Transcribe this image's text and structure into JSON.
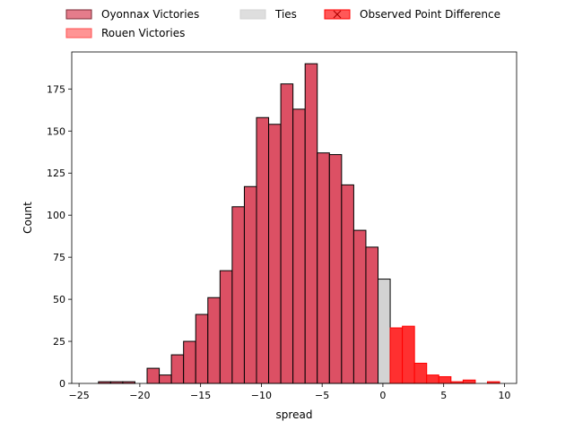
{
  "chart_data": {
    "type": "bar",
    "xlabel": "spread",
    "ylabel": "Count",
    "xlim": [
      -25.6,
      11.0
    ],
    "ylim": [
      0,
      197
    ],
    "x_ticks": [
      -25,
      -20,
      -15,
      -10,
      -5,
      0,
      5,
      10
    ],
    "y_ticks": [
      0,
      25,
      50,
      75,
      100,
      125,
      150,
      175
    ],
    "legend_position": "top",
    "legend": [
      {
        "label": "Oyonnax Victories",
        "color": "#dc5064",
        "edge": "#7a2a35"
      },
      {
        "label": "Ties",
        "color": "#d3d3d3",
        "edge": "#d3d3d3"
      },
      {
        "label": "Observed Point Difference",
        "color": "#ff2020",
        "edge": "#ff0000",
        "marker": "x"
      },
      {
        "label": "Rouen Victories",
        "color": "#ff7070",
        "edge": "#ff5050"
      }
    ],
    "series": [
      {
        "name": "Oyonnax Victories",
        "color": "#dc5064",
        "edge": "#000000",
        "bins": [
          {
            "x0": -23.4,
            "x1": -22.4,
            "count": 1
          },
          {
            "x0": -22.4,
            "x1": -21.4,
            "count": 1
          },
          {
            "x0": -21.4,
            "x1": -20.4,
            "count": 1
          },
          {
            "x0": -19.4,
            "x1": -18.4,
            "count": 9
          },
          {
            "x0": -18.4,
            "x1": -17.4,
            "count": 5
          },
          {
            "x0": -17.4,
            "x1": -16.4,
            "count": 17
          },
          {
            "x0": -16.4,
            "x1": -15.4,
            "count": 25
          },
          {
            "x0": -15.4,
            "x1": -14.4,
            "count": 41
          },
          {
            "x0": -14.4,
            "x1": -13.4,
            "count": 51
          },
          {
            "x0": -13.4,
            "x1": -12.4,
            "count": 67
          },
          {
            "x0": -12.4,
            "x1": -11.4,
            "count": 105
          },
          {
            "x0": -11.4,
            "x1": -10.4,
            "count": 117
          },
          {
            "x0": -10.4,
            "x1": -9.4,
            "count": 158
          },
          {
            "x0": -9.4,
            "x1": -8.4,
            "count": 154
          },
          {
            "x0": -8.4,
            "x1": -7.4,
            "count": 178
          },
          {
            "x0": -7.4,
            "x1": -6.4,
            "count": 163
          },
          {
            "x0": -6.4,
            "x1": -5.4,
            "count": 190
          },
          {
            "x0": -5.4,
            "x1": -4.4,
            "count": 137
          },
          {
            "x0": -4.4,
            "x1": -3.4,
            "count": 136
          },
          {
            "x0": -3.4,
            "x1": -2.4,
            "count": 118
          },
          {
            "x0": -2.4,
            "x1": -1.4,
            "count": 91
          },
          {
            "x0": -1.4,
            "x1": -0.4,
            "count": 81
          }
        ]
      },
      {
        "name": "Ties",
        "color": "#d3d3d3",
        "edge": "#000000",
        "bins": [
          {
            "x0": -0.4,
            "x1": 0.6,
            "count": 62
          }
        ]
      },
      {
        "name": "Rouen Victories",
        "color": "#ff3030",
        "edge": "#ff0000",
        "bins": [
          {
            "x0": 0.6,
            "x1": 1.6,
            "count": 33
          },
          {
            "x0": 1.6,
            "x1": 2.6,
            "count": 34
          },
          {
            "x0": 2.6,
            "x1": 3.6,
            "count": 12
          },
          {
            "x0": 3.6,
            "x1": 4.6,
            "count": 5
          },
          {
            "x0": 4.6,
            "x1": 5.6,
            "count": 4
          },
          {
            "x0": 5.6,
            "x1": 6.6,
            "count": 1
          },
          {
            "x0": 6.6,
            "x1": 7.6,
            "count": 2
          },
          {
            "x0": 8.6,
            "x1": 9.6,
            "count": 1
          }
        ]
      }
    ]
  }
}
